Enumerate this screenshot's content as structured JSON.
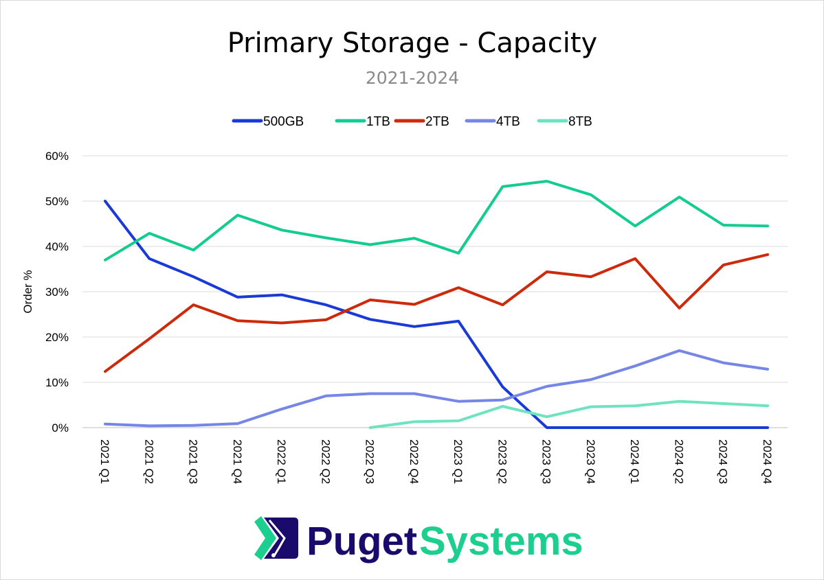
{
  "chart_data": {
    "type": "line",
    "title": "Primary Storage - Capacity",
    "subtitle": "2021-2024",
    "ylabel": "Order %",
    "xlabel": "",
    "ylim": [
      0,
      60
    ],
    "yticks": [
      "0%",
      "10%",
      "20%",
      "30%",
      "40%",
      "50%",
      "60%"
    ],
    "grid": true,
    "legend_position": "top",
    "categories": [
      "2021 Q1",
      "2021 Q2",
      "2021 Q3",
      "2021 Q4",
      "2022 Q1",
      "2022 Q2",
      "2022 Q3",
      "2022 Q4",
      "2023 Q1",
      "2023 Q2",
      "2023 Q3",
      "2023 Q4",
      "2024 Q1",
      "2024 Q2",
      "2024 Q3",
      "2024 Q4"
    ],
    "series": [
      {
        "name": "500GB",
        "color": "#1a3ad6",
        "values": [
          50.0,
          37.3,
          33.3,
          28.8,
          29.3,
          27.1,
          23.9,
          22.3,
          23.5,
          9.0,
          0,
          0,
          0,
          0,
          0,
          0
        ]
      },
      {
        "name": "1TB",
        "color": "#14cc90",
        "values": [
          37.0,
          42.9,
          39.2,
          46.9,
          43.6,
          41.9,
          40.4,
          41.8,
          38.5,
          53.2,
          54.4,
          51.4,
          44.5,
          50.9,
          44.7,
          44.5
        ]
      },
      {
        "name": "2TB",
        "color": "#cc2a0a",
        "values": [
          12.4,
          19.6,
          27.1,
          23.6,
          23.1,
          23.8,
          28.2,
          27.2,
          30.9,
          27.1,
          34.4,
          33.3,
          37.3,
          26.4,
          35.9,
          38.2
        ]
      },
      {
        "name": "4TB",
        "color": "#7586e6",
        "values": [
          0.8,
          0.4,
          0.5,
          0.9,
          4.1,
          7.0,
          7.5,
          7.5,
          5.8,
          6.1,
          9.1,
          10.6,
          13.6,
          17.0,
          14.3,
          12.9
        ]
      },
      {
        "name": "8TB",
        "color": "#6ee3c0",
        "values": [
          null,
          null,
          null,
          null,
          null,
          null,
          0,
          1.3,
          1.5,
          4.7,
          2.4,
          4.6,
          4.8,
          5.8,
          5.3,
          4.8
        ]
      }
    ]
  },
  "logo": {
    "word1": "Puget",
    "word2": "Systems",
    "color1": "#1a0a6b",
    "color2": "#1ccf8f"
  }
}
